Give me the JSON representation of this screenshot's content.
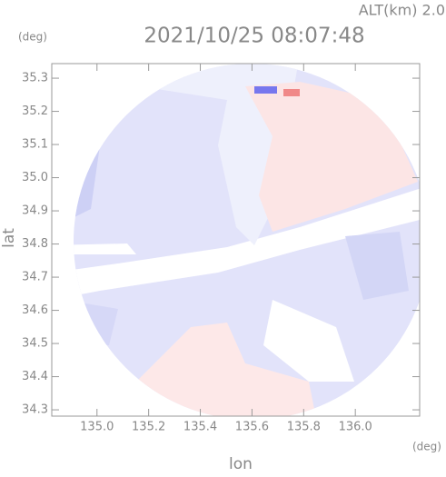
{
  "chart_data": {
    "type": "image",
    "title": "2021/10/25 08:07:48",
    "subtitle": "ALT(km) 2.0",
    "x_label": "lon",
    "y_label": "lat",
    "x_unit": "(deg)",
    "y_unit": "(deg)",
    "xlim": [
      134.825,
      136.249
    ],
    "ylim": [
      34.281,
      35.344
    ],
    "xticks": [
      {
        "value": 135.0,
        "label": "135.0"
      },
      135.2,
      135.4,
      135.6,
      135.8,
      {
        "value": 136.0,
        "label": "136.0"
      }
    ],
    "yticks": [
      34.3,
      34.4,
      34.5,
      34.6,
      34.7,
      34.8,
      34.9,
      {
        "value": 35.0,
        "label": "35.0"
      },
      35.1,
      35.2,
      35.3
    ]
  }
}
